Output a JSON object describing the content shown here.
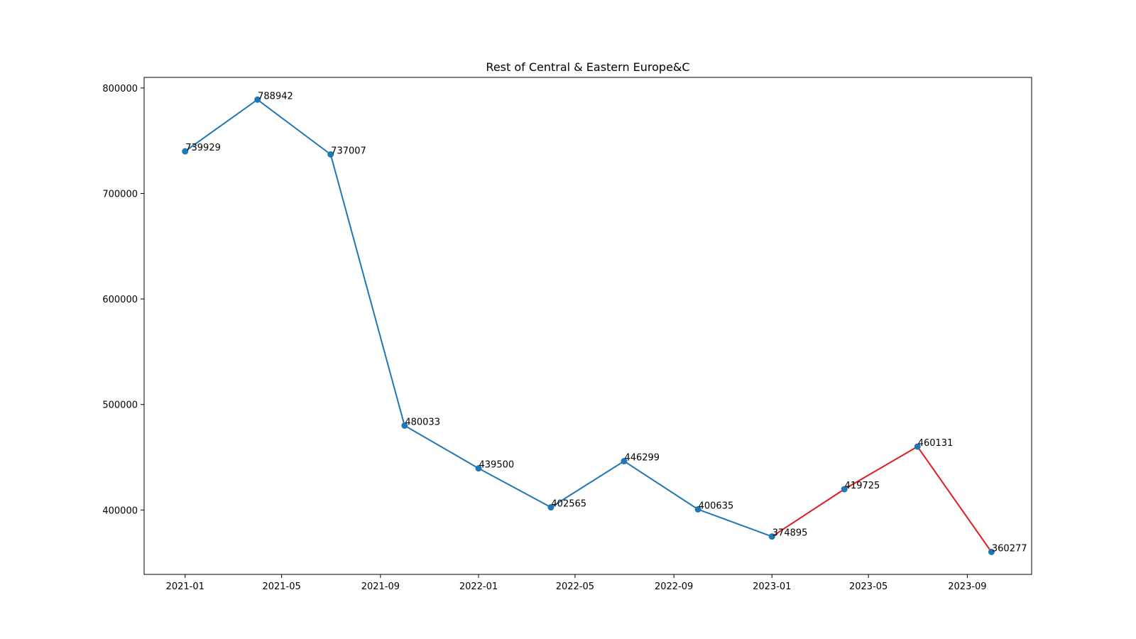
{
  "chart_data": {
    "type": "line",
    "title": "Rest of Central & Eastern Europe&C",
    "xlabel": "",
    "ylabel": "",
    "grid": false,
    "x": [
      "2021-01-01",
      "2021-04-01",
      "2021-07-01",
      "2021-10-01",
      "2022-01-01",
      "2022-04-01",
      "2022-07-01",
      "2022-10-01",
      "2023-01-01",
      "2023-04-01",
      "2023-07-01",
      "2023-10-01"
    ],
    "values": [
      739929,
      788942,
      737007,
      480033,
      439500,
      402565,
      446299,
      400635,
      374895,
      419725,
      460131,
      360277
    ],
    "value_labels": [
      "739929",
      "788942",
      "737007",
      "480033",
      "439500",
      "402565",
      "446299",
      "400635",
      "374895",
      "419725",
      "460131",
      "360277"
    ],
    "segments": [
      {
        "from_index": 0,
        "to_index": 8,
        "color": "#1f77b4"
      },
      {
        "from_index": 8,
        "to_index": 11,
        "color": "#e31a1c"
      }
    ],
    "marker_color": "#1f77b4",
    "xlim": [
      "2020-11-11",
      "2023-11-20"
    ],
    "ylim": [
      339000,
      810000
    ],
    "x_ticks": [
      "2021-01-01",
      "2021-05-01",
      "2021-09-01",
      "2022-01-01",
      "2022-05-01",
      "2022-09-01",
      "2023-01-01",
      "2023-05-01",
      "2023-09-01"
    ],
    "x_tick_labels": [
      "2021-01",
      "2021-05",
      "2021-09",
      "2022-01",
      "2022-05",
      "2022-09",
      "2023-01",
      "2023-05",
      "2023-09"
    ],
    "y_ticks": [
      400000,
      500000,
      600000,
      700000,
      800000
    ],
    "y_tick_labels": [
      "400000",
      "500000",
      "600000",
      "700000",
      "800000"
    ]
  }
}
